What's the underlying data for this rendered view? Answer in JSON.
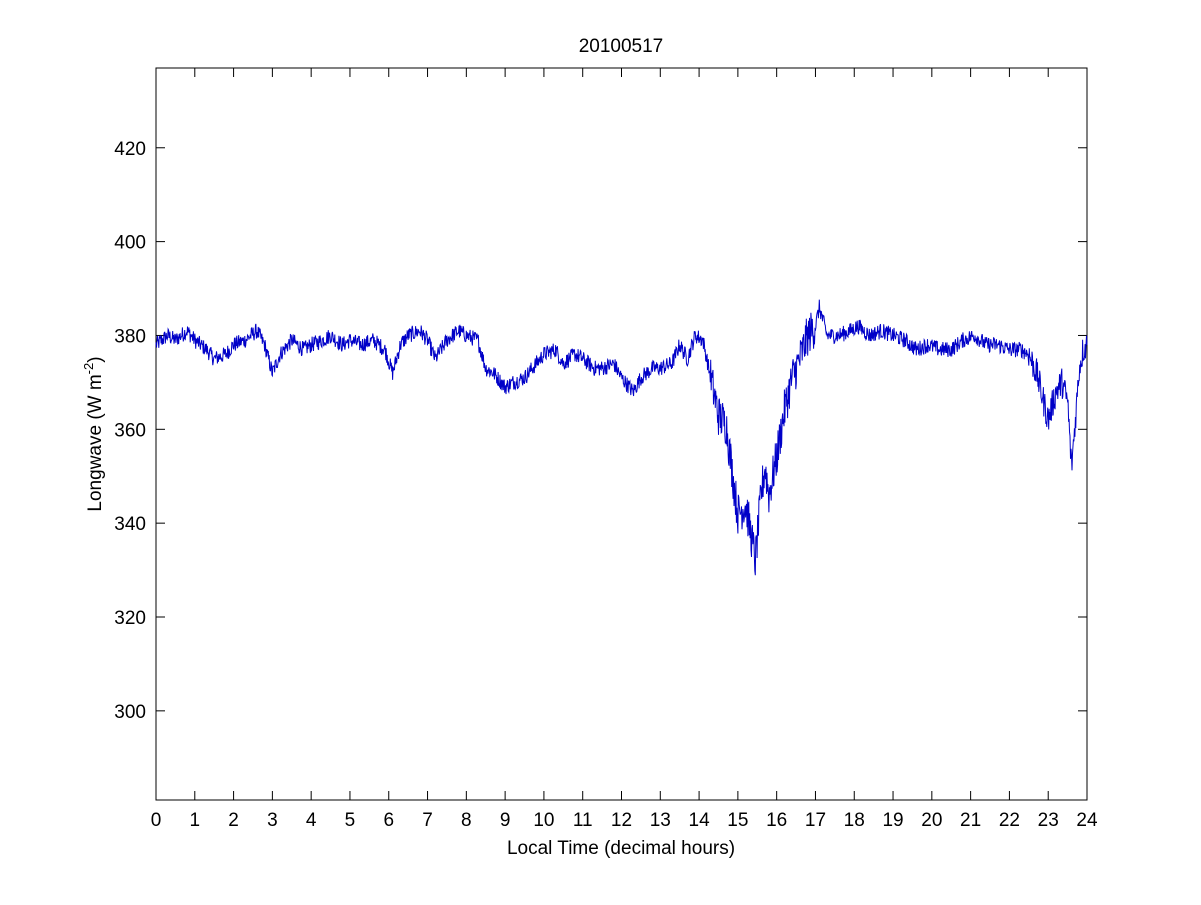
{
  "chart_data": {
    "type": "line",
    "title": "20100517",
    "xlabel": "Local Time (decimal hours)",
    "ylabel": "Longwave (W m",
    "ylabel_superscript": "-2",
    "ylabel_suffix": ")",
    "xlim": [
      0,
      24
    ],
    "ylim": [
      281,
      437
    ],
    "xticks": [
      0,
      1,
      2,
      3,
      4,
      5,
      6,
      7,
      8,
      9,
      10,
      11,
      12,
      13,
      14,
      15,
      16,
      17,
      18,
      19,
      20,
      21,
      22,
      23,
      24
    ],
    "xtick_labels": [
      "0",
      "1",
      "2",
      "3",
      "4",
      "5",
      "6",
      "7",
      "8",
      "9",
      "10",
      "11",
      "12",
      "13",
      "14",
      "15",
      "16",
      "17",
      "18",
      "19",
      "20",
      "21",
      "22",
      "23",
      "24"
    ],
    "yticks": [
      300,
      320,
      340,
      360,
      380,
      400,
      420
    ],
    "ytick_labels": [
      "300",
      "320",
      "340",
      "360",
      "380",
      "400",
      "420"
    ],
    "grid": false,
    "line_color": "#0000c8",
    "series": [
      {
        "x": [
          0,
          0.3,
          0.5,
          0.8,
          1.0,
          1.3,
          1.5,
          1.8,
          2.0,
          2.3,
          2.6,
          2.8,
          3.0,
          3.2,
          3.5,
          3.8,
          4.0,
          4.3,
          4.5,
          4.8,
          5.0,
          5.3,
          5.6,
          5.9,
          6.1,
          6.3,
          6.5,
          6.8,
          7.0,
          7.2,
          7.5,
          7.8,
          8.0,
          8.3,
          8.5,
          8.7,
          9.0,
          9.2,
          9.5,
          9.8,
          10.0,
          10.3,
          10.5,
          10.8,
          11.0,
          11.3,
          11.5,
          11.8,
          12.0,
          12.3,
          12.5,
          12.8,
          13.0,
          13.3,
          13.5,
          13.7,
          13.9,
          14.1,
          14.3,
          14.5,
          14.7,
          14.9,
          15.0,
          15.2,
          15.35,
          15.45,
          15.6,
          15.7,
          15.8,
          16.0,
          16.2,
          16.4,
          16.6,
          16.8,
          17.0,
          17.1,
          17.3,
          17.6,
          17.9,
          18.1,
          18.4,
          18.7,
          19.0,
          19.3,
          19.6,
          19.9,
          20.2,
          20.5,
          20.8,
          21.1,
          21.4,
          21.7,
          22.0,
          22.3,
          22.5,
          22.7,
          22.85,
          23.0,
          23.2,
          23.35,
          23.5,
          23.6,
          23.7,
          23.8,
          23.9,
          24.0
        ],
        "y": [
          378,
          380,
          379,
          381,
          379,
          377,
          375,
          376,
          378,
          379,
          381,
          378,
          372,
          376,
          379,
          377,
          378,
          379,
          380,
          378,
          379,
          378,
          379,
          377,
          372,
          378,
          380,
          381,
          379,
          375,
          379,
          381,
          380,
          379,
          373,
          372,
          369,
          370,
          371,
          374,
          376,
          377,
          374,
          376,
          375,
          373,
          373,
          374,
          371,
          368,
          371,
          373,
          373,
          374,
          378,
          375,
          380,
          379,
          371,
          363,
          361,
          348,
          342,
          344,
          337,
          332,
          346,
          352,
          346,
          354,
          364,
          371,
          375,
          380,
          382,
          386,
          380,
          380,
          381,
          382,
          380,
          381,
          380,
          379,
          377,
          378,
          377,
          377,
          379,
          380,
          378,
          378,
          377,
          377,
          376,
          372,
          367,
          362,
          368,
          370,
          366,
          352,
          362,
          373,
          377,
          378
        ]
      }
    ]
  }
}
